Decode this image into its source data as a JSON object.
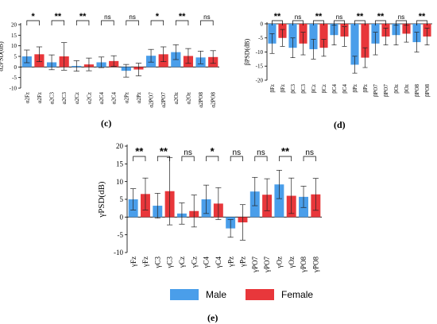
{
  "colors": {
    "male": "#4a9eea",
    "female": "#e8373b",
    "axis": "#000000"
  },
  "legend": {
    "male_label": "Male",
    "female_label": "Female"
  },
  "panel_labels": {
    "c": "(c)",
    "d": "(d)",
    "e": "(e)"
  },
  "chart_data": [
    {
      "id": "c",
      "type": "bar",
      "ylabel": "α2PSD(dB)",
      "ylim": [
        -10,
        20
      ],
      "yticks": [
        -10,
        -5,
        0,
        5,
        10,
        15,
        20
      ],
      "categories": [
        "α2Fz",
        "α2Fz",
        "α2C3",
        "α2C3",
        "α2Cz",
        "α2Cz",
        "α2C4",
        "α2C4",
        "α2Pz",
        "α2Pz",
        "α2PO7",
        "α2PO7",
        "α2Oz",
        "α2Oz",
        "α2PO8",
        "α2PO8"
      ],
      "groups": [
        "male",
        "female",
        "male",
        "female",
        "male",
        "female",
        "male",
        "female",
        "male",
        "female",
        "male",
        "female",
        "male",
        "female",
        "male",
        "female"
      ],
      "values": [
        5.0,
        6.0,
        2.2,
        5.0,
        0.5,
        1.2,
        2.2,
        2.8,
        -1.8,
        -1.2,
        5.3,
        6.0,
        7.0,
        5.2,
        4.5,
        4.7
      ],
      "errors": [
        3.0,
        3.5,
        3.5,
        6.5,
        2.5,
        3.0,
        2.5,
        2.5,
        3.0,
        3.0,
        3.0,
        3.5,
        3.5,
        3.5,
        3.0,
        3.0
      ],
      "significance": [
        "*",
        "**",
        "**",
        "ns",
        "ns",
        "*",
        "**",
        "ns"
      ]
    },
    {
      "id": "d",
      "type": "bar",
      "ylabel": "βPSD(dB)",
      "ylim": [
        -20,
        0
      ],
      "yticks": [
        -20,
        -15,
        -10,
        -5,
        0
      ],
      "categories": [
        "βFz",
        "βFz",
        "βC3",
        "βC3",
        "βCz",
        "βCz",
        "βC4",
        "βC4",
        "βPz",
        "βPz",
        "βPO7",
        "βPO7",
        "βOz",
        "βOz",
        "βPO8",
        "βPO8"
      ],
      "groups": [
        "male",
        "female",
        "male",
        "female",
        "male",
        "female",
        "male",
        "female",
        "male",
        "female",
        "male",
        "female",
        "male",
        "female",
        "male",
        "female"
      ],
      "values": [
        -7.0,
        -5.0,
        -8.5,
        -7.0,
        -9.0,
        -8.5,
        -4.0,
        -4.5,
        -14.5,
        -12.0,
        -7.0,
        -4.5,
        -4.0,
        -3.5,
        -6.5,
        -4.5
      ],
      "errors": [
        3.5,
        3.0,
        3.5,
        4.0,
        3.5,
        3.0,
        3.5,
        3.5,
        3.0,
        3.5,
        4.0,
        3.0,
        3.5,
        3.0,
        3.5,
        3.0
      ],
      "significance": [
        "**",
        "ns",
        "**",
        "ns",
        "**",
        "**",
        "ns",
        "**"
      ]
    },
    {
      "id": "e",
      "type": "bar",
      "ylabel": "γPSD(dB)",
      "ylim": [
        -10,
        20
      ],
      "yticks": [
        -10,
        -5,
        0,
        5,
        10,
        15,
        20
      ],
      "categories": [
        "γFz",
        "γFz",
        "γC3",
        "γC3",
        "γCz",
        "γCz",
        "γC4",
        "γC4",
        "γPz",
        "γPz",
        "γPO7",
        "γPO7",
        "γOz",
        "γOz",
        "γPO8",
        "γPO8"
      ],
      "groups": [
        "male",
        "female",
        "male",
        "female",
        "male",
        "female",
        "male",
        "female",
        "male",
        "female",
        "male",
        "female",
        "male",
        "female",
        "male",
        "female"
      ],
      "values": [
        5.0,
        6.5,
        3.2,
        7.3,
        1.0,
        1.7,
        5.0,
        3.8,
        -3.2,
        -1.5,
        7.2,
        6.3,
        9.2,
        6.0,
        5.7,
        6.4
      ],
      "errors": [
        3.0,
        4.5,
        3.5,
        9.5,
        3.0,
        4.5,
        4.0,
        4.5,
        2.5,
        5.0,
        4.0,
        4.5,
        4.0,
        5.0,
        3.0,
        4.5
      ],
      "significance": [
        "**",
        "**",
        "ns",
        "*",
        "ns",
        "ns",
        "**",
        "ns"
      ]
    }
  ]
}
